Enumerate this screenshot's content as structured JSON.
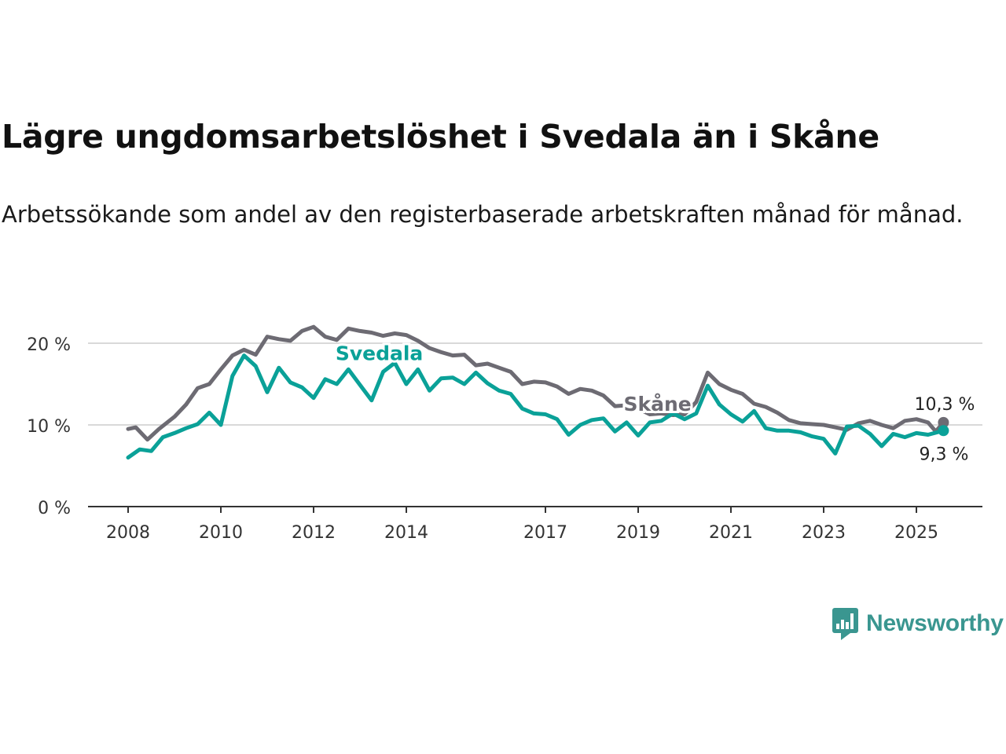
{
  "title": "Lägre ungdomsarbetslöshet i Svedala än i Skåne",
  "subtitle": "Arbetssökande som andel av den registerbaserade arbetskraften månad för månad.",
  "brand": {
    "name": "Newsworthy",
    "icon": "newsworthy-logo-icon",
    "color": "#3a9690"
  },
  "chart_data": {
    "type": "line",
    "title": "Lägre ungdomsarbetslöshet i Svedala än i Skåne",
    "ylabel": "",
    "xlabel": "",
    "ylim": [
      0,
      21
    ],
    "xlim": [
      "2007-01",
      "2026-04"
    ],
    "y_ticks": [
      0,
      10,
      20
    ],
    "y_tick_labels": [
      "0 %",
      "10 %",
      "20 %"
    ],
    "x_ticks": [
      "2008-01",
      "2010-01",
      "2012-01",
      "2014-01",
      "2017-01",
      "2019-01",
      "2021-01",
      "2023-01",
      "2025-01"
    ],
    "x_tick_labels": [
      "2008",
      "2010",
      "2012",
      "2014",
      "2017",
      "2019",
      "2021",
      "2023",
      "2025"
    ],
    "grid": "horizontal",
    "series": [
      {
        "name": "Skåne",
        "color": "#6d6b73",
        "end_label": "10,3 %",
        "points": [
          [
            "2008-01",
            9.5
          ],
          [
            "2008-03",
            9.7
          ],
          [
            "2008-06",
            8.2
          ],
          [
            "2008-09",
            9.5
          ],
          [
            "2009-01",
            11.0
          ],
          [
            "2009-04",
            12.5
          ],
          [
            "2009-07",
            14.5
          ],
          [
            "2009-10",
            15.0
          ],
          [
            "2010-01",
            16.8
          ],
          [
            "2010-04",
            18.5
          ],
          [
            "2010-07",
            19.2
          ],
          [
            "2010-10",
            18.6
          ],
          [
            "2011-01",
            20.8
          ],
          [
            "2011-04",
            20.5
          ],
          [
            "2011-07",
            20.3
          ],
          [
            "2011-10",
            21.5
          ],
          [
            "2012-01",
            22.0
          ],
          [
            "2012-04",
            20.8
          ],
          [
            "2012-07",
            20.4
          ],
          [
            "2012-10",
            21.8
          ],
          [
            "2013-01",
            21.5
          ],
          [
            "2013-04",
            21.3
          ],
          [
            "2013-07",
            20.9
          ],
          [
            "2013-10",
            21.2
          ],
          [
            "2014-01",
            21.0
          ],
          [
            "2014-04",
            20.3
          ],
          [
            "2014-07",
            19.4
          ],
          [
            "2014-10",
            18.9
          ],
          [
            "2015-01",
            18.5
          ],
          [
            "2015-04",
            18.6
          ],
          [
            "2015-07",
            17.3
          ],
          [
            "2015-10",
            17.5
          ],
          [
            "2016-01",
            17.0
          ],
          [
            "2016-04",
            16.5
          ],
          [
            "2016-07",
            15.0
          ],
          [
            "2016-10",
            15.3
          ],
          [
            "2017-01",
            15.2
          ],
          [
            "2017-04",
            14.7
          ],
          [
            "2017-07",
            13.8
          ],
          [
            "2017-10",
            14.4
          ],
          [
            "2018-01",
            14.2
          ],
          [
            "2018-04",
            13.6
          ],
          [
            "2018-07",
            12.3
          ],
          [
            "2018-10",
            12.4
          ],
          [
            "2019-01",
            12.0
          ],
          [
            "2019-04",
            11.3
          ],
          [
            "2019-07",
            11.4
          ],
          [
            "2019-10",
            11.2
          ],
          [
            "2020-01",
            11.3
          ],
          [
            "2020-04",
            12.8
          ],
          [
            "2020-07",
            16.4
          ],
          [
            "2020-10",
            15.0
          ],
          [
            "2021-01",
            14.3
          ],
          [
            "2021-04",
            13.8
          ],
          [
            "2021-07",
            12.6
          ],
          [
            "2021-10",
            12.2
          ],
          [
            "2022-01",
            11.5
          ],
          [
            "2022-04",
            10.6
          ],
          [
            "2022-07",
            10.2
          ],
          [
            "2022-10",
            10.1
          ],
          [
            "2023-01",
            10.0
          ],
          [
            "2023-04",
            9.7
          ],
          [
            "2023-07",
            9.4
          ],
          [
            "2023-10",
            10.2
          ],
          [
            "2024-01",
            10.5
          ],
          [
            "2024-04",
            10.0
          ],
          [
            "2024-07",
            9.6
          ],
          [
            "2024-10",
            10.5
          ],
          [
            "2025-01",
            10.7
          ],
          [
            "2025-04",
            10.3
          ],
          [
            "2025-06",
            9.2
          ],
          [
            "2025-08",
            10.3
          ]
        ]
      },
      {
        "name": "Svedala",
        "color": "#0aa198",
        "end_label": "9,3 %",
        "points": [
          [
            "2008-01",
            6.0
          ],
          [
            "2008-04",
            7.0
          ],
          [
            "2008-07",
            6.8
          ],
          [
            "2008-10",
            8.5
          ],
          [
            "2009-01",
            9.0
          ],
          [
            "2009-04",
            9.6
          ],
          [
            "2009-07",
            10.1
          ],
          [
            "2009-10",
            11.5
          ],
          [
            "2010-01",
            10.0
          ],
          [
            "2010-04",
            16.0
          ],
          [
            "2010-07",
            18.5
          ],
          [
            "2010-10",
            17.2
          ],
          [
            "2011-01",
            14.0
          ],
          [
            "2011-04",
            17.0
          ],
          [
            "2011-07",
            15.2
          ],
          [
            "2011-10",
            14.6
          ],
          [
            "2012-01",
            13.3
          ],
          [
            "2012-04",
            15.6
          ],
          [
            "2012-07",
            15.0
          ],
          [
            "2012-10",
            16.8
          ],
          [
            "2013-01",
            14.9
          ],
          [
            "2013-04",
            13.0
          ],
          [
            "2013-07",
            16.5
          ],
          [
            "2013-10",
            17.6
          ],
          [
            "2014-01",
            15.0
          ],
          [
            "2014-04",
            16.8
          ],
          [
            "2014-07",
            14.2
          ],
          [
            "2014-10",
            15.7
          ],
          [
            "2015-01",
            15.8
          ],
          [
            "2015-04",
            15.0
          ],
          [
            "2015-07",
            16.4
          ],
          [
            "2015-10",
            15.1
          ],
          [
            "2016-01",
            14.2
          ],
          [
            "2016-04",
            13.8
          ],
          [
            "2016-07",
            12.0
          ],
          [
            "2016-10",
            11.4
          ],
          [
            "2017-01",
            11.3
          ],
          [
            "2017-04",
            10.7
          ],
          [
            "2017-07",
            8.8
          ],
          [
            "2017-10",
            10.0
          ],
          [
            "2018-01",
            10.6
          ],
          [
            "2018-04",
            10.8
          ],
          [
            "2018-07",
            9.2
          ],
          [
            "2018-10",
            10.3
          ],
          [
            "2019-01",
            8.7
          ],
          [
            "2019-04",
            10.3
          ],
          [
            "2019-07",
            10.5
          ],
          [
            "2019-10",
            11.4
          ],
          [
            "2020-01",
            10.7
          ],
          [
            "2020-04",
            11.4
          ],
          [
            "2020-07",
            14.8
          ],
          [
            "2020-10",
            12.5
          ],
          [
            "2021-01",
            11.3
          ],
          [
            "2021-04",
            10.4
          ],
          [
            "2021-07",
            11.7
          ],
          [
            "2021-10",
            9.6
          ],
          [
            "2022-01",
            9.3
          ],
          [
            "2022-04",
            9.3
          ],
          [
            "2022-07",
            9.1
          ],
          [
            "2022-10",
            8.6
          ],
          [
            "2023-01",
            8.3
          ],
          [
            "2023-04",
            6.5
          ],
          [
            "2023-07",
            9.8
          ],
          [
            "2023-10",
            9.9
          ],
          [
            "2024-01",
            8.9
          ],
          [
            "2024-04",
            7.4
          ],
          [
            "2024-07",
            8.9
          ],
          [
            "2024-10",
            8.5
          ],
          [
            "2025-01",
            9.0
          ],
          [
            "2025-04",
            8.8
          ],
          [
            "2025-08",
            9.3
          ]
        ]
      }
    ],
    "annotations": [
      {
        "series": "Svedala",
        "text": "Svedala",
        "at": "2013-06",
        "value": 18.8
      },
      {
        "series": "Skåne",
        "text": "Skåne",
        "at": "2019-06",
        "value": 12.6
      }
    ]
  }
}
